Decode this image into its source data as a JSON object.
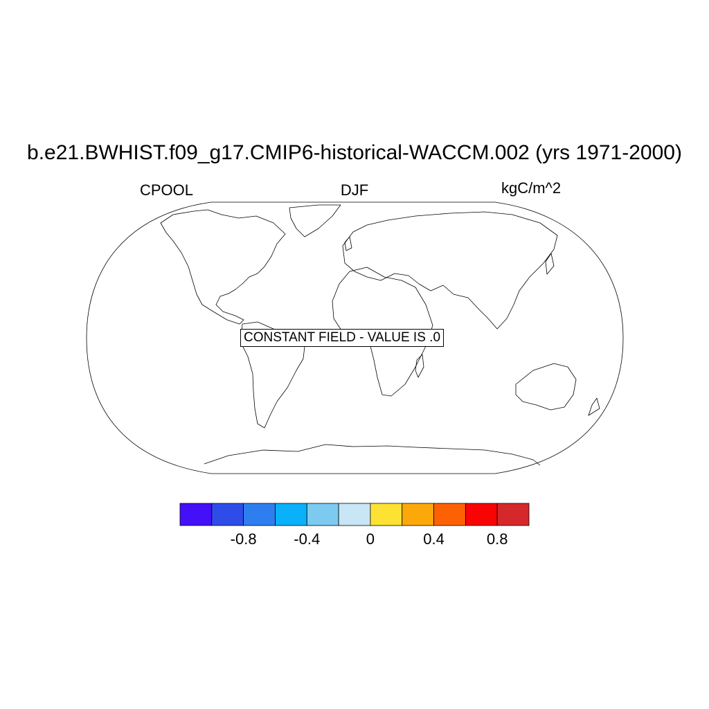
{
  "title": "b.e21.BWHIST.f09_g17.CMIP6-historical-WACCM.002 (yrs 1971-2000)",
  "variable": "CPOOL",
  "season": "DJF",
  "units": "kgC/m^2",
  "notice": "CONSTANT FIELD - VALUE IS .0",
  "colorbar": {
    "colors": [
      "#4410f8",
      "#2e4de8",
      "#2f7ef0",
      "#0ab0fa",
      "#7ccaef",
      "#c8e6f6",
      "#fde234",
      "#fba80a",
      "#fc6204",
      "#f80404",
      "#d5282b"
    ],
    "ticks": [
      {
        "value": -0.8,
        "label": "-0.8"
      },
      {
        "value": -0.4,
        "label": "-0.4"
      },
      {
        "value": 0,
        "label": "0"
      },
      {
        "value": 0.4,
        "label": "0.4"
      },
      {
        "value": 0.8,
        "label": "0.8"
      }
    ],
    "min": -1.2,
    "max": 1.0
  }
}
